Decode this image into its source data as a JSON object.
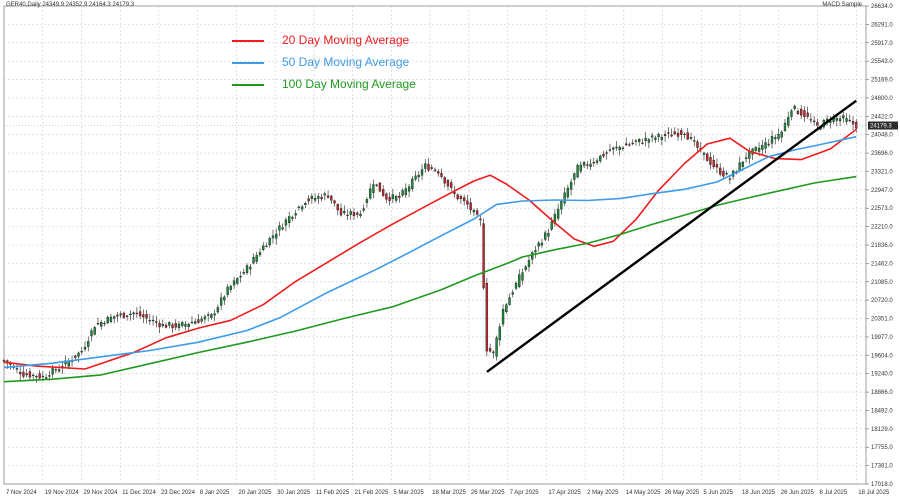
{
  "header": {
    "symbol_info": "GER40,Daily  24349.9 24352.9 24164.3 24179.3",
    "indicator": "MACD Sample"
  },
  "price_tag": "24179.3",
  "chart_data": {
    "type": "candlestick",
    "title": "",
    "xlabel": "",
    "ylabel": "",
    "ylim": [
      16819,
      26634
    ],
    "grid": true,
    "legend_placement": "top-left",
    "y_ticks": [
      "26634.0",
      "26291.0",
      "25917.0",
      "25543.0",
      "25169.0",
      "24800.0",
      "24422.0",
      "24048.0",
      "23696.0",
      "23321.0",
      "22947.0",
      "22573.0",
      "22210.0",
      "21836.0",
      "21462.0",
      "21085.0",
      "20720.0",
      "20351.0",
      "19977.0",
      "19604.0",
      "19240.0",
      "18866.0",
      "18492.0",
      "18129.0",
      "17755.0",
      "17381.0",
      "17018.0"
    ],
    "x_ticks": [
      "7 Nov 2024",
      "19 Nov 2024",
      "29 Nov 2024",
      "11 Dec 2024",
      "23 Dec 2024",
      "8 Jan 2025",
      "20 Jan 2025",
      "30 Jan 2025",
      "11 Feb 2025",
      "21 Feb 2025",
      "5 Mar 2025",
      "18 Mar 2025",
      "26 Mar 2025",
      "7 Apr 2025",
      "17 Apr 2025",
      "2 May 2025",
      "14 May 2025",
      "26 May 2025",
      "5 Jun 2025",
      "18 Jun 2025",
      "26 Jun 2025",
      "8 Jul 2025",
      "18 Jul 2025"
    ],
    "series": [
      {
        "name": "20 Day Moving Average",
        "color": "#ee1c1c",
        "values": [
          [
            0,
            19320
          ],
          [
            10,
            19240
          ],
          [
            25,
            19180
          ],
          [
            40,
            19520
          ],
          [
            50,
            19820
          ],
          [
            60,
            20020
          ],
          [
            70,
            20180
          ],
          [
            80,
            20500
          ],
          [
            90,
            20980
          ],
          [
            100,
            21380
          ],
          [
            110,
            21780
          ],
          [
            120,
            22160
          ],
          [
            130,
            22520
          ],
          [
            138,
            22800
          ],
          [
            145,
            23040
          ],
          [
            150,
            23160
          ],
          [
            155,
            22980
          ],
          [
            162,
            22650
          ],
          [
            170,
            22180
          ],
          [
            176,
            21850
          ],
          [
            182,
            21700
          ],
          [
            188,
            21800
          ],
          [
            195,
            22250
          ],
          [
            202,
            22850
          ],
          [
            210,
            23400
          ],
          [
            217,
            23800
          ],
          [
            224,
            23920
          ],
          [
            230,
            23650
          ],
          [
            238,
            23500
          ],
          [
            246,
            23480
          ],
          [
            255,
            23700
          ],
          [
            263,
            24100
          ]
        ]
      },
      {
        "name": "50 Day Moving Average",
        "color": "#3d9be9",
        "values": [
          [
            0,
            19210
          ],
          [
            15,
            19300
          ],
          [
            30,
            19430
          ],
          [
            45,
            19560
          ],
          [
            60,
            19730
          ],
          [
            75,
            19970
          ],
          [
            85,
            20230
          ],
          [
            100,
            20760
          ],
          [
            115,
            21230
          ],
          [
            125,
            21570
          ],
          [
            135,
            21920
          ],
          [
            145,
            22260
          ],
          [
            152,
            22560
          ],
          [
            160,
            22630
          ],
          [
            170,
            22650
          ],
          [
            180,
            22640
          ],
          [
            190,
            22680
          ],
          [
            200,
            22780
          ],
          [
            210,
            22870
          ],
          [
            220,
            23020
          ],
          [
            228,
            23280
          ],
          [
            236,
            23540
          ],
          [
            244,
            23680
          ],
          [
            252,
            23790
          ],
          [
            263,
            23950
          ]
        ]
      },
      {
        "name": "100 Day Moving Average",
        "color": "#1f9a1f",
        "values": [
          [
            0,
            18920
          ],
          [
            15,
            18970
          ],
          [
            30,
            19060
          ],
          [
            45,
            19290
          ],
          [
            60,
            19520
          ],
          [
            75,
            19730
          ],
          [
            90,
            19960
          ],
          [
            105,
            20220
          ],
          [
            120,
            20460
          ],
          [
            135,
            20810
          ],
          [
            145,
            21090
          ],
          [
            155,
            21340
          ],
          [
            160,
            21480
          ],
          [
            170,
            21630
          ],
          [
            180,
            21760
          ],
          [
            190,
            21940
          ],
          [
            200,
            22150
          ],
          [
            210,
            22340
          ],
          [
            220,
            22540
          ],
          [
            230,
            22700
          ],
          [
            240,
            22850
          ],
          [
            250,
            23000
          ],
          [
            263,
            23130
          ]
        ]
      }
    ],
    "trendline": {
      "color": "#000000",
      "points": [
        [
          149,
          19120
        ],
        [
          263,
          24690
        ]
      ]
    },
    "candles_path": [
      [
        0,
        19350
      ],
      [
        6,
        19080
      ],
      [
        12,
        19020
      ],
      [
        18,
        19240
      ],
      [
        24,
        19550
      ],
      [
        28,
        20080
      ],
      [
        34,
        20260
      ],
      [
        40,
        20330
      ],
      [
        45,
        20190
      ],
      [
        49,
        20080
      ],
      [
        54,
        20060
      ],
      [
        58,
        20150
      ],
      [
        64,
        20260
      ],
      [
        69,
        20800
      ],
      [
        75,
        21250
      ],
      [
        80,
        21700
      ],
      [
        88,
        22300
      ],
      [
        93,
        22640
      ],
      [
        100,
        22760
      ],
      [
        104,
        22350
      ],
      [
        110,
        22380
      ],
      [
        114,
        23020
      ],
      [
        118,
        22700
      ],
      [
        122,
        22700
      ],
      [
        127,
        23100
      ],
      [
        130,
        23350
      ],
      [
        134,
        23250
      ],
      [
        139,
        22760
      ],
      [
        143,
        22550
      ],
      [
        147,
        22200
      ],
      [
        149,
        19600
      ],
      [
        151,
        19500
      ],
      [
        154,
        20400
      ],
      [
        159,
        21050
      ],
      [
        164,
        21650
      ],
      [
        168,
        22020
      ],
      [
        172,
        22600
      ],
      [
        177,
        23300
      ],
      [
        182,
        23450
      ],
      [
        187,
        23670
      ],
      [
        193,
        23800
      ],
      [
        200,
        23920
      ],
      [
        206,
        24000
      ],
      [
        210,
        24050
      ],
      [
        215,
        23640
      ],
      [
        220,
        23280
      ],
      [
        224,
        23100
      ],
      [
        229,
        23550
      ],
      [
        235,
        23800
      ],
      [
        240,
        24050
      ],
      [
        243,
        24550
      ],
      [
        247,
        24400
      ],
      [
        251,
        24150
      ],
      [
        255,
        24320
      ],
      [
        259,
        24320
      ],
      [
        263,
        24180
      ]
    ]
  }
}
